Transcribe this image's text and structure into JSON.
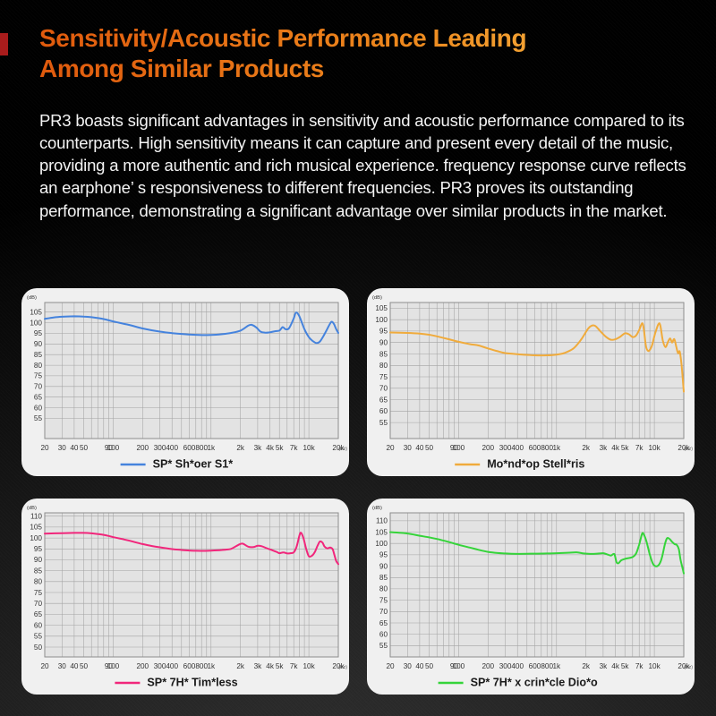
{
  "page": {
    "title_line1": "Sensitivity/Acoustic Performance Leading",
    "title_line2": "Among Similar Products",
    "body_text": "PR3 boasts significant advantages in sensitivity and acoustic performance compared to its counterparts. High sensitivity means it can capture and present every detail of the music, providing a more authentic and rich musical experience. frequency response curve reflects an earphone’ s responsiveness to different frequencies. PR3 proves its outstanding performance, demonstrating a significant advantage over similar products in the market.",
    "accent_color": "#a91c1c",
    "title_gradient": [
      "#e05a0d",
      "#f8bc4a"
    ]
  },
  "chart_data": [
    {
      "type": "line",
      "panel": "top-left",
      "legend": "SP* Sh*oer S1*",
      "color": "#4583dd",
      "ylabel": "(dB)",
      "x_unit": "(Hz)",
      "grid": true,
      "legend_position": "bottom-center",
      "xlim": [
        20,
        20000
      ],
      "ylim": [
        45.5,
        109.5
      ],
      "yticks": [
        105,
        100,
        95,
        90,
        85,
        80,
        75,
        70,
        65,
        60,
        55
      ],
      "xticks": [
        [
          20,
          "20"
        ],
        [
          30,
          "30"
        ],
        [
          40,
          "40"
        ],
        [
          50,
          "50"
        ],
        [
          90,
          "90"
        ],
        [
          100,
          "100"
        ],
        [
          200,
          "200"
        ],
        [
          300,
          "300"
        ],
        [
          400,
          "400"
        ],
        [
          600,
          "600"
        ],
        [
          800,
          "800"
        ],
        [
          1000,
          "1k"
        ],
        [
          2000,
          "2k"
        ],
        [
          3000,
          "3k"
        ],
        [
          4000,
          "4k"
        ],
        [
          5000,
          "5k"
        ],
        [
          7000,
          "7k"
        ],
        [
          10000,
          "10k"
        ],
        [
          20000,
          "20k"
        ]
      ],
      "points": [
        [
          20,
          101.8
        ],
        [
          25,
          102.5
        ],
        [
          30,
          102.8
        ],
        [
          40,
          103
        ],
        [
          50,
          102.9
        ],
        [
          60,
          102.6
        ],
        [
          80,
          101.7
        ],
        [
          100,
          100.6
        ],
        [
          150,
          98.8
        ],
        [
          200,
          97.3
        ],
        [
          300,
          95.8
        ],
        [
          400,
          95.1
        ],
        [
          500,
          94.7
        ],
        [
          700,
          94.3
        ],
        [
          1000,
          94.2
        ],
        [
          1300,
          94.6
        ],
        [
          1600,
          95.2
        ],
        [
          2000,
          96.3
        ],
        [
          2400,
          98.6
        ],
        [
          2600,
          99
        ],
        [
          2900,
          97.8
        ],
        [
          3200,
          95.8
        ],
        [
          3600,
          95.3
        ],
        [
          4000,
          95.5
        ],
        [
          4500,
          96
        ],
        [
          5000,
          96.3
        ],
        [
          5400,
          97.9
        ],
        [
          5800,
          96.9
        ],
        [
          6300,
          97.5
        ],
        [
          7000,
          102
        ],
        [
          7400,
          104.8
        ],
        [
          8000,
          103
        ],
        [
          9000,
          97
        ],
        [
          10000,
          93.2
        ],
        [
          11000,
          91.3
        ],
        [
          12000,
          90.4
        ],
        [
          13000,
          91.2
        ],
        [
          14000,
          93.5
        ],
        [
          15000,
          96
        ],
        [
          16000,
          98.5
        ],
        [
          17000,
          100.4
        ],
        [
          18000,
          99.5
        ],
        [
          19000,
          97
        ],
        [
          20000,
          95.2
        ]
      ]
    },
    {
      "type": "line",
      "panel": "top-right",
      "legend": "Mo*nd*op Stell*ris",
      "color": "#f0ab3c",
      "ylabel": "(dB)",
      "x_unit": "(Hz)",
      "grid": true,
      "legend_position": "bottom-center",
      "xlim": [
        20,
        20000
      ],
      "ylim": [
        48,
        107.5
      ],
      "yticks": [
        105,
        100,
        95,
        90,
        85,
        80,
        75,
        70,
        65,
        60,
        55
      ],
      "xticks": [
        [
          20,
          "20"
        ],
        [
          30,
          "30"
        ],
        [
          40,
          "40"
        ],
        [
          50,
          "50"
        ],
        [
          90,
          "90"
        ],
        [
          100,
          "100"
        ],
        [
          200,
          "200"
        ],
        [
          300,
          "300"
        ],
        [
          400,
          "400"
        ],
        [
          600,
          "600"
        ],
        [
          800,
          "800"
        ],
        [
          1000,
          "1k"
        ],
        [
          2000,
          "2k"
        ],
        [
          3000,
          "3k"
        ],
        [
          4000,
          "4k"
        ],
        [
          5000,
          "5k"
        ],
        [
          7000,
          "7k"
        ],
        [
          10000,
          "10k"
        ],
        [
          20000,
          "20k"
        ]
      ],
      "points": [
        [
          20,
          94.4
        ],
        [
          30,
          94.2
        ],
        [
          40,
          93.9
        ],
        [
          50,
          93.4
        ],
        [
          60,
          92.7
        ],
        [
          80,
          91.4
        ],
        [
          100,
          90.3
        ],
        [
          130,
          89.3
        ],
        [
          160,
          88.7
        ],
        [
          200,
          87.4
        ],
        [
          250,
          86.2
        ],
        [
          300,
          85.4
        ],
        [
          400,
          84.9
        ],
        [
          500,
          84.6
        ],
        [
          600,
          84.4
        ],
        [
          800,
          84.4
        ],
        [
          1000,
          84.7
        ],
        [
          1200,
          85.4
        ],
        [
          1500,
          87.5
        ],
        [
          1800,
          91.5
        ],
        [
          2100,
          96
        ],
        [
          2300,
          97.4
        ],
        [
          2500,
          97.2
        ],
        [
          2800,
          95
        ],
        [
          3200,
          92.5
        ],
        [
          3600,
          91.2
        ],
        [
          4000,
          91.4
        ],
        [
          4500,
          92.6
        ],
        [
          5000,
          94
        ],
        [
          5500,
          93.6
        ],
        [
          6000,
          92.4
        ],
        [
          6500,
          93
        ],
        [
          7000,
          95.5
        ],
        [
          7500,
          98.4
        ],
        [
          7800,
          96
        ],
        [
          8200,
          88.5
        ],
        [
          8600,
          86.4
        ],
        [
          9000,
          86.8
        ],
        [
          9500,
          89
        ],
        [
          10200,
          94
        ],
        [
          11000,
          98
        ],
        [
          11500,
          97.6
        ],
        [
          12200,
          91
        ],
        [
          13000,
          88
        ],
        [
          13800,
          90.3
        ],
        [
          14500,
          91.8
        ],
        [
          15200,
          90
        ],
        [
          16000,
          91.5
        ],
        [
          16800,
          88
        ],
        [
          17500,
          85.3
        ],
        [
          18200,
          86
        ],
        [
          19000,
          80
        ],
        [
          20000,
          68.5
        ]
      ]
    },
    {
      "type": "line",
      "panel": "bottom-left",
      "legend": "SP* 7H* Tim*less",
      "color": "#f1267b",
      "ylabel": "(dB)",
      "x_unit": "(Hz)",
      "grid": true,
      "legend_position": "bottom-center",
      "xlim": [
        20,
        20000
      ],
      "ylim": [
        45.5,
        111.5
      ],
      "yticks": [
        110,
        105,
        100,
        95,
        90,
        85,
        80,
        75,
        70,
        65,
        60,
        55,
        50
      ],
      "xticks": [
        [
          20,
          "20"
        ],
        [
          30,
          "30"
        ],
        [
          40,
          "40"
        ],
        [
          50,
          "50"
        ],
        [
          90,
          "90"
        ],
        [
          100,
          "100"
        ],
        [
          200,
          "200"
        ],
        [
          300,
          "300"
        ],
        [
          400,
          "400"
        ],
        [
          600,
          "600"
        ],
        [
          800,
          "800"
        ],
        [
          1000,
          "1k"
        ],
        [
          2000,
          "2k"
        ],
        [
          3000,
          "3k"
        ],
        [
          4000,
          "4k"
        ],
        [
          5000,
          "5k"
        ],
        [
          7000,
          "7k"
        ],
        [
          10000,
          "10k"
        ],
        [
          20000,
          "20k"
        ]
      ],
      "points": [
        [
          20,
          102
        ],
        [
          30,
          102.2
        ],
        [
          40,
          102.3
        ],
        [
          50,
          102.3
        ],
        [
          60,
          102.1
        ],
        [
          80,
          101.4
        ],
        [
          100,
          100.4
        ],
        [
          130,
          99.3
        ],
        [
          160,
          98.3
        ],
        [
          200,
          97.2
        ],
        [
          250,
          96.3
        ],
        [
          300,
          95.7
        ],
        [
          400,
          94.9
        ],
        [
          500,
          94.5
        ],
        [
          700,
          94.1
        ],
        [
          1000,
          94.2
        ],
        [
          1300,
          94.5
        ],
        [
          1600,
          95
        ],
        [
          1900,
          96.8
        ],
        [
          2100,
          97.4
        ],
        [
          2400,
          96
        ],
        [
          2700,
          95.8
        ],
        [
          3000,
          96.4
        ],
        [
          3300,
          96.2
        ],
        [
          3700,
          95.3
        ],
        [
          4200,
          94.4
        ],
        [
          4700,
          93.6
        ],
        [
          5000,
          93
        ],
        [
          5500,
          93.4
        ],
        [
          6000,
          92.9
        ],
        [
          6500,
          93
        ],
        [
          7000,
          93.4
        ],
        [
          7500,
          96
        ],
        [
          8000,
          101
        ],
        [
          8300,
          102.4
        ],
        [
          8800,
          100
        ],
        [
          9400,
          95
        ],
        [
          10000,
          91.6
        ],
        [
          10800,
          91.9
        ],
        [
          11500,
          93.5
        ],
        [
          12300,
          96.5
        ],
        [
          13000,
          98.4
        ],
        [
          13800,
          97.8
        ],
        [
          14500,
          96
        ],
        [
          15500,
          95.2
        ],
        [
          16500,
          95.6
        ],
        [
          17500,
          94.8
        ],
        [
          18300,
          92
        ],
        [
          19000,
          89.5
        ],
        [
          20000,
          88
        ]
      ]
    },
    {
      "type": "line",
      "panel": "bottom-right",
      "legend": "SP* 7H* x crin*cle Dio*o",
      "color": "#35d43a",
      "ylabel": "(dB)",
      "x_unit": "(Hz)",
      "grid": true,
      "legend_position": "bottom-center",
      "xlim": [
        20,
        20000
      ],
      "ylim": [
        50,
        113.5
      ],
      "yticks": [
        110,
        105,
        100,
        95,
        90,
        85,
        80,
        75,
        70,
        65,
        60,
        55
      ],
      "xticks": [
        [
          20,
          "20"
        ],
        [
          30,
          "30"
        ],
        [
          40,
          "40"
        ],
        [
          50,
          "50"
        ],
        [
          90,
          "90"
        ],
        [
          100,
          "100"
        ],
        [
          200,
          "200"
        ],
        [
          300,
          "300"
        ],
        [
          400,
          "400"
        ],
        [
          600,
          "600"
        ],
        [
          800,
          "800"
        ],
        [
          1000,
          "1k"
        ],
        [
          2000,
          "2k"
        ],
        [
          3000,
          "3k"
        ],
        [
          4000,
          "4k"
        ],
        [
          5000,
          "5k"
        ],
        [
          7000,
          "7k"
        ],
        [
          10000,
          "10k"
        ],
        [
          20000,
          "20k"
        ]
      ],
      "points": [
        [
          20,
          105
        ],
        [
          30,
          104.4
        ],
        [
          40,
          103.4
        ],
        [
          50,
          102.7
        ],
        [
          60,
          102
        ],
        [
          80,
          100.6
        ],
        [
          100,
          99.4
        ],
        [
          130,
          98.2
        ],
        [
          160,
          97.2
        ],
        [
          200,
          96.3
        ],
        [
          250,
          95.8
        ],
        [
          300,
          95.6
        ],
        [
          400,
          95.4
        ],
        [
          600,
          95.5
        ],
        [
          800,
          95.6
        ],
        [
          1000,
          95.7
        ],
        [
          1300,
          95.9
        ],
        [
          1600,
          96.1
        ],
        [
          1900,
          95.6
        ],
        [
          2200,
          95.4
        ],
        [
          2600,
          95.5
        ],
        [
          3000,
          95.7
        ],
        [
          3300,
          95.2
        ],
        [
          3600,
          94.7
        ],
        [
          3900,
          95.3
        ],
        [
          4100,
          91.8
        ],
        [
          4300,
          91.3
        ],
        [
          4600,
          92.6
        ],
        [
          5000,
          93.2
        ],
        [
          5500,
          93.6
        ],
        [
          6000,
          94
        ],
        [
          6500,
          95.5
        ],
        [
          7000,
          99.5
        ],
        [
          7500,
          104.3
        ],
        [
          7800,
          104
        ],
        [
          8300,
          101
        ],
        [
          9000,
          95
        ],
        [
          9700,
          91
        ],
        [
          10500,
          89.9
        ],
        [
          11300,
          91
        ],
        [
          12000,
          94
        ],
        [
          12800,
          99.5
        ],
        [
          13500,
          102.3
        ],
        [
          14300,
          102
        ],
        [
          15000,
          101
        ],
        [
          16000,
          99.8
        ],
        [
          17000,
          99.3
        ],
        [
          17800,
          97.5
        ],
        [
          18500,
          93
        ],
        [
          19200,
          90
        ],
        [
          20000,
          86.8
        ]
      ]
    }
  ]
}
